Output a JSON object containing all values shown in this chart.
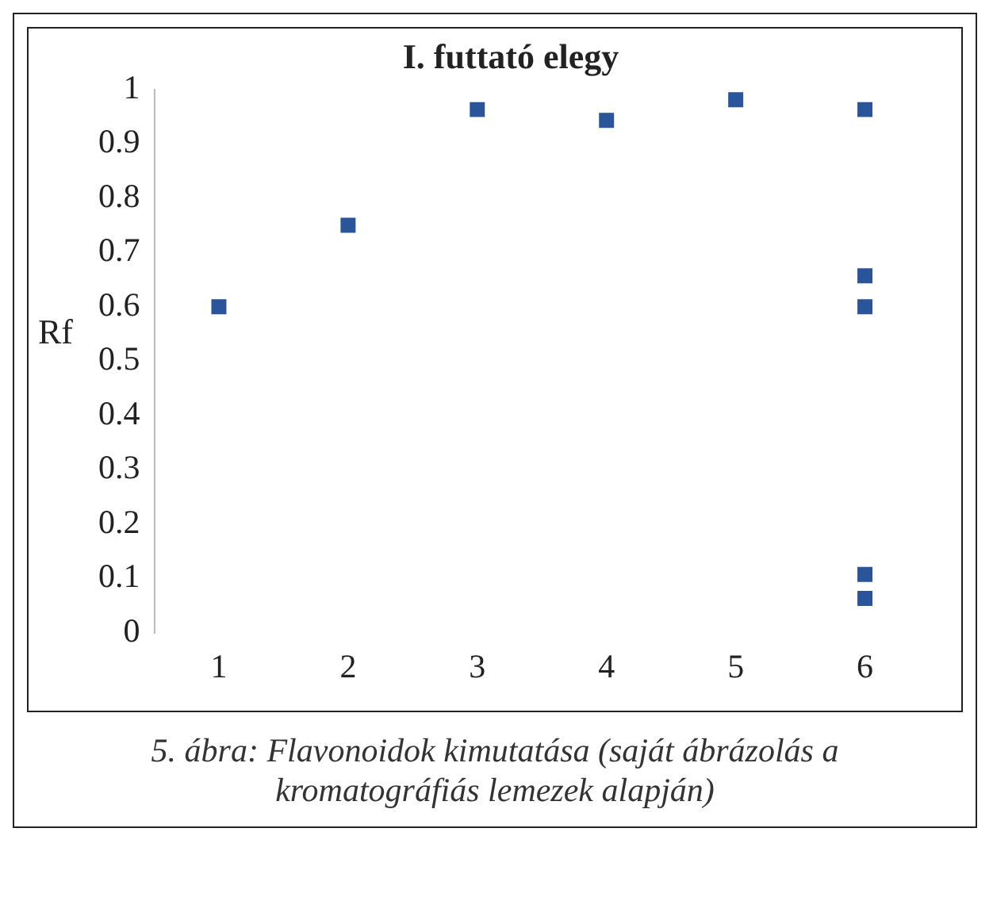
{
  "chart_data": {
    "type": "scatter",
    "title": "I. futtató elegy",
    "ylabel": "Rf",
    "categories": [
      "1",
      "2",
      "3",
      "4",
      "5",
      "6"
    ],
    "series": [
      {
        "color": "#2a559b",
        "x": [
          "1",
          "2",
          "3",
          "4",
          "5",
          "6",
          "6",
          "6",
          "6",
          "6"
        ],
        "values": [
          0.6,
          0.75,
          0.963,
          0.943,
          0.981,
          0.963,
          0.657,
          0.6,
          0.107,
          0.063
        ]
      }
    ],
    "ylim": [
      0,
      1
    ],
    "yticks": [
      0,
      0.1,
      0.2,
      0.3,
      0.4,
      0.5,
      0.6,
      0.7,
      0.8,
      0.9,
      1
    ],
    "grid": false,
    "legend": false,
    "marker": "square",
    "annotations": [
      "5. ábra: Flavonoidok kimutatása (saját ábrázolás a kromatográfiás lemezek alapján)"
    ]
  }
}
